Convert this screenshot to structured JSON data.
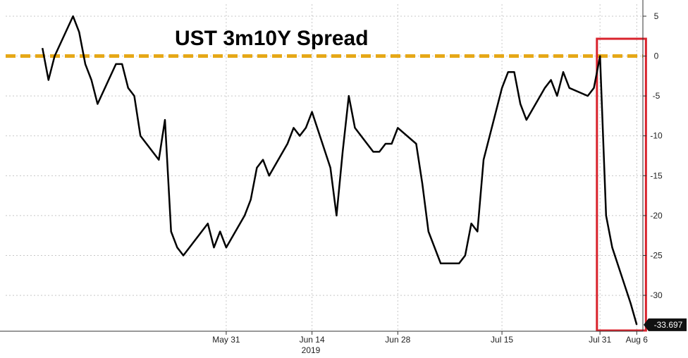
{
  "chart_data": {
    "type": "line",
    "title": "UST 3m10Y Spread",
    "xlabel": "2019",
    "ylabel": "",
    "x_tick_labels": [
      "May 31",
      "Jun 14",
      "Jun 28",
      "Jul 15",
      "Jul 31",
      "Aug 6"
    ],
    "y_ticks": [
      5,
      0,
      -5,
      -10,
      -15,
      -20,
      -25,
      -30
    ],
    "ylim": [
      -34.5,
      6.5
    ],
    "grid": true,
    "reference_line": {
      "value": 0,
      "color": "#e6a817",
      "style": "dashed"
    },
    "last_value_label": "-33.697",
    "highlight_box_color": "#d9232d",
    "line_color": "#000000",
    "series": [
      {
        "x": [
          "2019-05-01",
          "2019-05-02",
          "2019-05-03",
          "2019-05-06",
          "2019-05-07",
          "2019-05-08",
          "2019-05-09",
          "2019-05-10",
          "2019-05-13",
          "2019-05-14",
          "2019-05-15",
          "2019-05-16",
          "2019-05-17",
          "2019-05-20",
          "2019-05-21",
          "2019-05-22",
          "2019-05-23",
          "2019-05-24",
          "2019-05-28",
          "2019-05-29",
          "2019-05-30",
          "2019-05-31",
          "2019-06-03",
          "2019-06-04",
          "2019-06-05",
          "2019-06-06",
          "2019-06-07",
          "2019-06-10",
          "2019-06-11",
          "2019-06-12",
          "2019-06-13",
          "2019-06-14",
          "2019-06-17",
          "2019-06-18",
          "2019-06-19",
          "2019-06-20",
          "2019-06-21",
          "2019-06-24",
          "2019-06-25",
          "2019-06-26",
          "2019-06-27",
          "2019-06-28",
          "2019-07-01",
          "2019-07-02",
          "2019-07-03",
          "2019-07-05",
          "2019-07-08",
          "2019-07-09",
          "2019-07-10",
          "2019-07-11",
          "2019-07-12",
          "2019-07-15",
          "2019-07-16",
          "2019-07-17",
          "2019-07-18",
          "2019-07-19",
          "2019-07-22",
          "2019-07-23",
          "2019-07-24",
          "2019-07-25",
          "2019-07-26",
          "2019-07-29",
          "2019-07-30",
          "2019-07-31",
          "2019-08-01",
          "2019-08-02",
          "2019-08-05",
          "2019-08-06"
        ],
        "values": [
          1,
          -3,
          0,
          5,
          3,
          -1,
          -3,
          -6,
          -1,
          -1,
          -4,
          -5,
          -10,
          -13,
          -8,
          -22,
          -24,
          -25,
          -21,
          -24,
          -22,
          -24,
          -20,
          -18,
          -14,
          -13,
          -15,
          -11,
          -9,
          -10,
          -9,
          -7,
          -14,
          -20,
          -12,
          -5,
          -9,
          -12,
          -12,
          -11,
          -11,
          -9,
          -11,
          -16,
          -22,
          -26,
          -26,
          -25,
          -21,
          -22,
          -13,
          -4,
          -2,
          -2,
          -6,
          -8,
          -4,
          -3,
          -5,
          -2,
          -4,
          -5,
          -4,
          0,
          -20,
          -24,
          -31,
          -33.697
        ]
      }
    ]
  }
}
